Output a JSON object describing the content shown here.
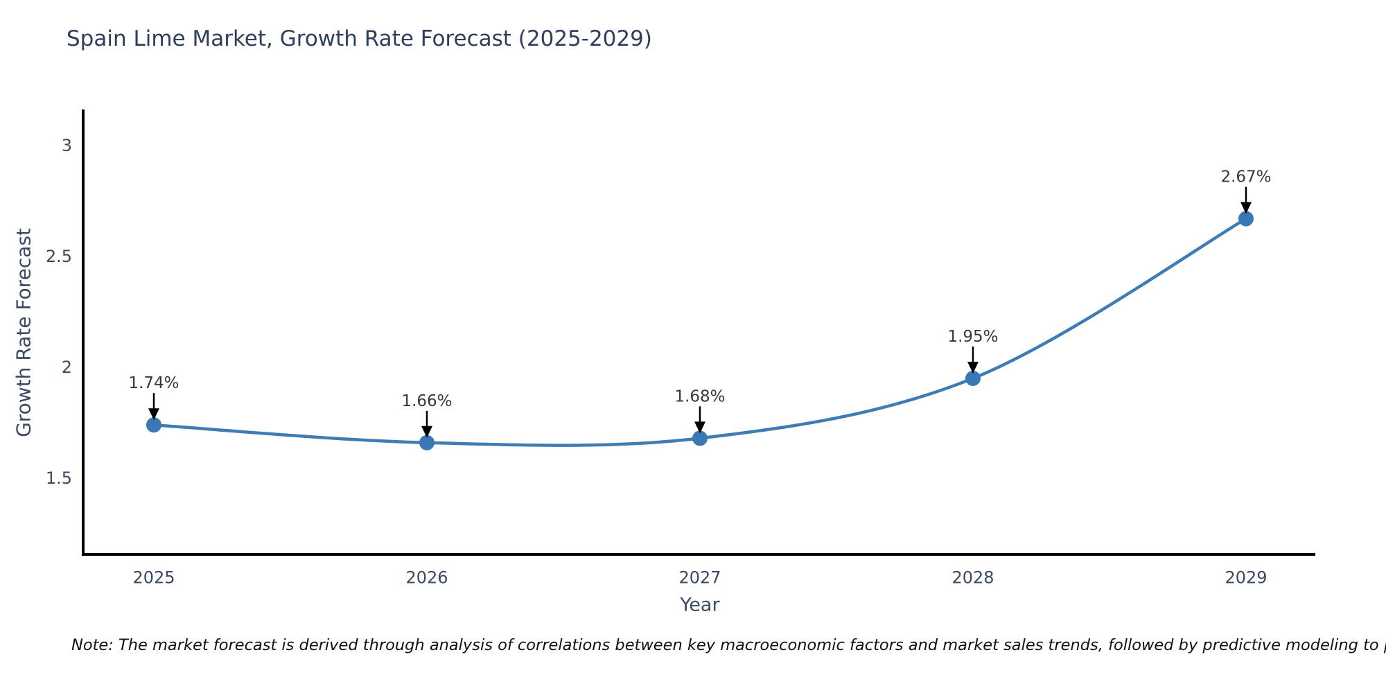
{
  "title": "Spain Lime Market, Growth Rate Forecast (2025-2029)",
  "note": "Note: The market forecast is derived through analysis of correlations between key macroeconomic factors and market sales trends, followed by predictive modeling to project future sales",
  "colors": {
    "title_text": "#2e3e5c",
    "axis_title_text": "#3b4a63",
    "tick_text": "#3b4a5f",
    "annotation_text": "#333840",
    "axis_line": "#000000",
    "series_line": "#3e7cb6",
    "marker_fill": "#3878b4",
    "arrow": "#000000",
    "background": "#ffffff",
    "note_text": "#111111"
  },
  "chart_data": {
    "type": "line",
    "title": "Spain Lime Market, Growth Rate Forecast (2025-2029)",
    "xlabel": "Year",
    "ylabel": "Growth Rate Forecast",
    "x": [
      2025,
      2026,
      2027,
      2028,
      2029
    ],
    "series": [
      {
        "name": "Growth Rate Forecast",
        "values": [
          1.74,
          1.66,
          1.68,
          1.95,
          2.67
        ]
      }
    ],
    "point_labels": [
      "1.74%",
      "1.66%",
      "1.68%",
      "1.95%",
      "2.67%"
    ],
    "x_tick_labels": [
      "2025",
      "2026",
      "2027",
      "2028",
      "2029"
    ],
    "y_ticks": [
      1.5,
      2,
      2.5,
      3
    ],
    "y_tick_labels": [
      "1.5",
      "2",
      "2.5",
      "3"
    ],
    "ylim": [
      1.15,
      3.16
    ],
    "grid": false,
    "legend": "none",
    "curve": "spline",
    "annotations": "value labels with downward arrows above each point"
  }
}
